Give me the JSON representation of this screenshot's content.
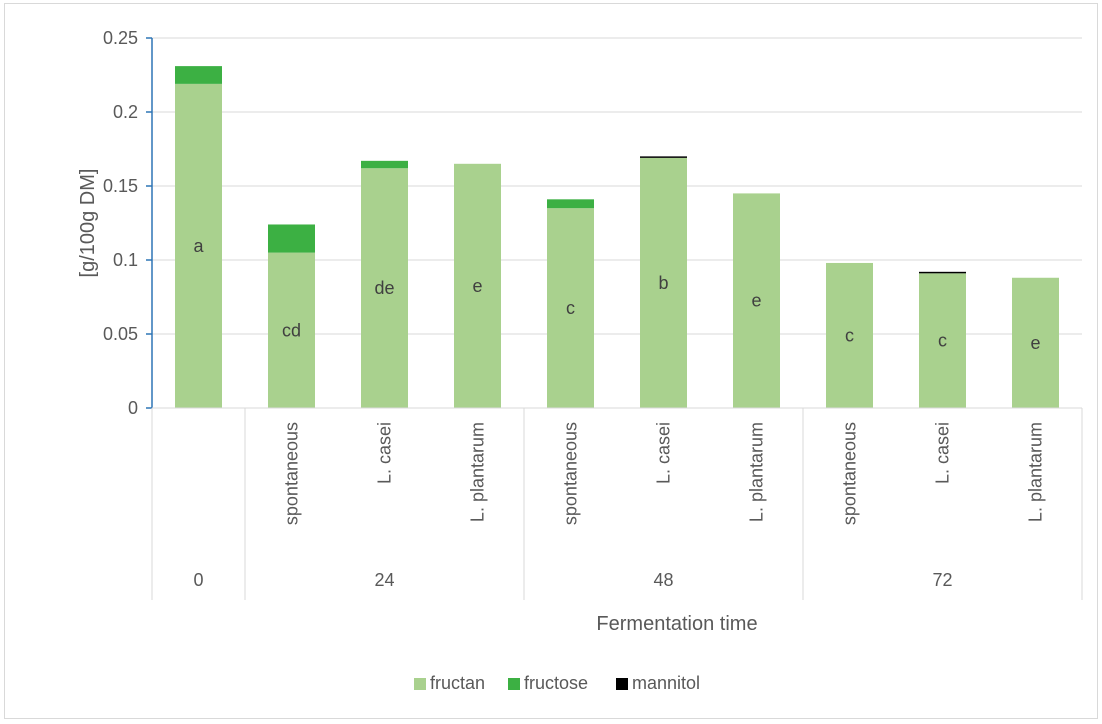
{
  "chart_data": {
    "type": "bar",
    "stacked": true,
    "title": "",
    "xlabel": "Fermentation time",
    "ylabel": "[g/100g DM]",
    "ylim": [
      0,
      0.25
    ],
    "yticks": [
      "0",
      "0.05",
      "0.1",
      "0.15",
      "0.2",
      "0.25"
    ],
    "grid": true,
    "legend_position": "bottom",
    "categories": [
      {
        "time": "0",
        "strain": ""
      },
      {
        "time": "24",
        "strain": "spontaneous"
      },
      {
        "time": "24",
        "strain": "L. casei"
      },
      {
        "time": "24",
        "strain": "L. plantarum"
      },
      {
        "time": "48",
        "strain": "spontaneous"
      },
      {
        "time": "48",
        "strain": "L. casei"
      },
      {
        "time": "48",
        "strain": "L. plantarum"
      },
      {
        "time": "72",
        "strain": "spontaneous"
      },
      {
        "time": "72",
        "strain": "L. casei"
      },
      {
        "time": "72",
        "strain": "L. plantarum"
      }
    ],
    "groups": [
      "0",
      "24",
      "48",
      "72"
    ],
    "series": [
      {
        "name": "fructan",
        "color": "#a9d18e",
        "values": [
          0.219,
          0.105,
          0.162,
          0.165,
          0.135,
          0.169,
          0.145,
          0.098,
          0.091,
          0.088
        ]
      },
      {
        "name": "fructose",
        "color": "#3cb043",
        "values": [
          0.012,
          0.019,
          0.005,
          0,
          0.006,
          0,
          0,
          0,
          0,
          0
        ]
      },
      {
        "name": "mannitol",
        "color": "#000000",
        "values": [
          0,
          0,
          0,
          0,
          0,
          0.001,
          0,
          0,
          0.001,
          0
        ]
      }
    ],
    "bar_labels": [
      "a",
      "cd",
      "de",
      "e",
      "c",
      "b",
      "e",
      "c",
      "c",
      "e"
    ]
  }
}
